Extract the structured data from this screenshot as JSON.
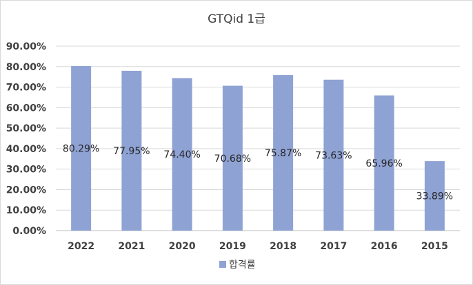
{
  "chart_data": {
    "type": "bar",
    "title": "GTQid 1급",
    "categories": [
      "2022",
      "2021",
      "2020",
      "2019",
      "2018",
      "2017",
      "2016",
      "2015"
    ],
    "series": [
      {
        "name": "합격률",
        "values": [
          80.29,
          77.95,
          74.4,
          70.68,
          75.87,
          73.63,
          65.96,
          33.89
        ],
        "labels": [
          "80.29%",
          "77.95%",
          "74.40%",
          "70.68%",
          "75.87%",
          "73.63%",
          "65.96%",
          "33.89%"
        ],
        "color": "#8fa2d4"
      }
    ],
    "yticks": [
      "0.00%",
      "10.00%",
      "20.00%",
      "30.00%",
      "40.00%",
      "50.00%",
      "60.00%",
      "70.00%",
      "80.00%",
      "90.00%"
    ],
    "ylim": [
      0,
      90
    ],
    "grid": true,
    "legend": "bottom",
    "gridline_color": "#d9d9d9",
    "axis_color": "#bfbfbf"
  }
}
